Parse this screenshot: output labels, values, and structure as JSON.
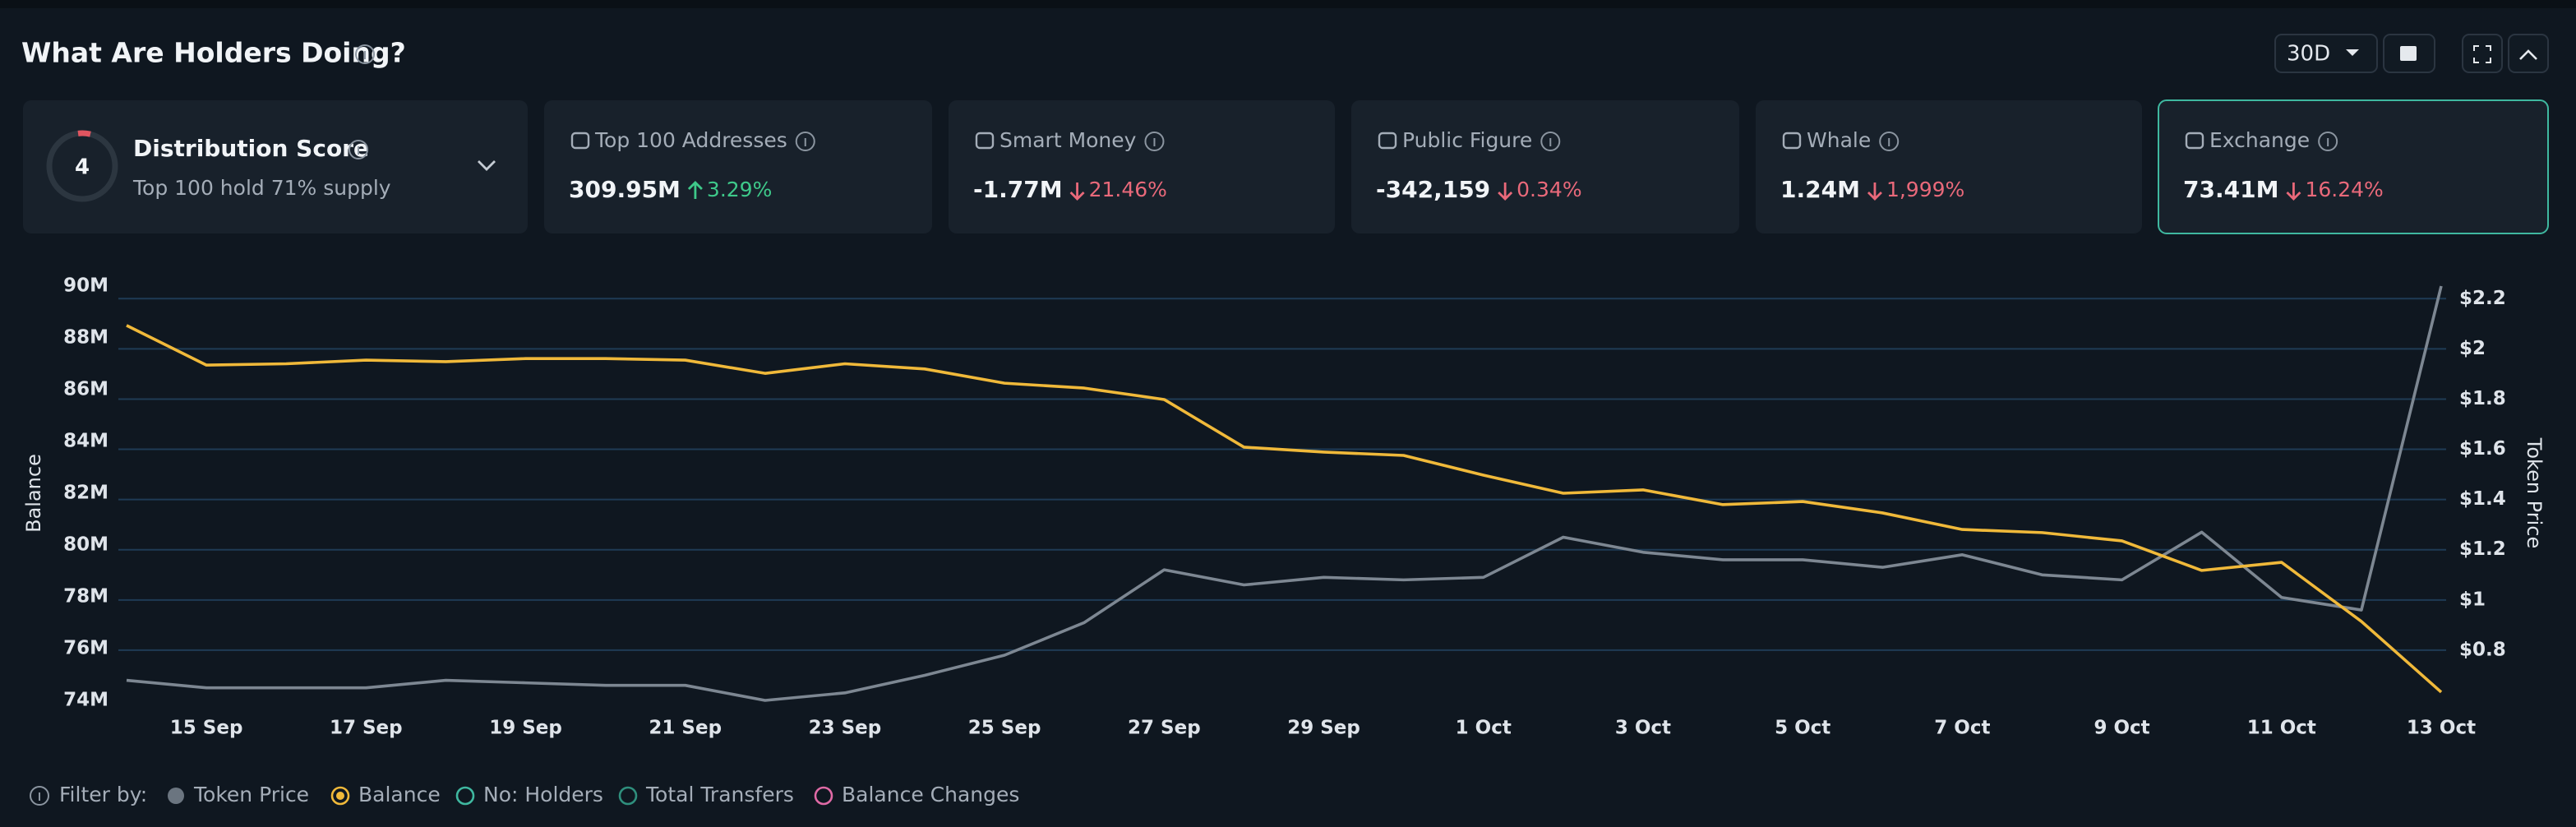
{
  "header": {
    "title": "What Are Holders Doing?",
    "period": "30D"
  },
  "distribution": {
    "label": "Distribution Score",
    "score": 4,
    "subtitle": "Top 100 hold 71% supply"
  },
  "cards": [
    {
      "label": "Top 100 Addresses",
      "value": "309.95M",
      "change": "3.29%",
      "direction": "up"
    },
    {
      "label": "Smart Money",
      "value": "-1.77M",
      "change": "21.46%",
      "direction": "down"
    },
    {
      "label": "Public Figure",
      "value": "-342,159",
      "change": "0.34%",
      "direction": "down"
    },
    {
      "label": "Whale",
      "value": "1.24M",
      "change": "1,999%",
      "direction": "down"
    },
    {
      "label": "Exchange",
      "value": "73.41M",
      "change": "16.24%",
      "direction": "down"
    }
  ],
  "filter": {
    "label": "Filter by:",
    "items": [
      {
        "name": "Token Price",
        "color": "#6b7580",
        "active": true
      },
      {
        "name": "Balance",
        "color": "#f0b93a",
        "active": true
      },
      {
        "name": "No: Holders",
        "color": "#3fb8a0",
        "active": false
      },
      {
        "name": "Total Transfers",
        "color": "#2f8f7d",
        "active": false
      },
      {
        "name": "Balance Changes",
        "color": "#e06aa6",
        "active": false
      }
    ]
  },
  "chart_data": {
    "type": "line",
    "y_label": "Balance",
    "y2_label": "Token Price",
    "categories": [
      null,
      "15 Sep",
      null,
      "17 Sep",
      null,
      "19 Sep",
      null,
      "21 Sep",
      null,
      "23 Sep",
      null,
      "25 Sep",
      null,
      "27 Sep",
      null,
      "29 Sep",
      null,
      "1 Oct",
      null,
      "3 Oct",
      null,
      "5 Oct",
      null,
      "7 Oct",
      null,
      "9 Oct",
      null,
      "11 Oct",
      null,
      "13 Oct"
    ],
    "series": [
      {
        "name": "Balance",
        "color": "#f0b93a",
        "axis": "y",
        "values": [
          88480000,
          86950000,
          87000000,
          87140000,
          87080000,
          87200000,
          87200000,
          87140000,
          86630000,
          87000000,
          86800000,
          86250000,
          86060000,
          85620000,
          83780000,
          83590000,
          83460000,
          82700000,
          82000000,
          82130000,
          81560000,
          81680000,
          81240000,
          80600000,
          80480000,
          80160000,
          79020000,
          79330000,
          77050000,
          74320000
        ]
      },
      {
        "name": "Token Price",
        "color": "#7d8792",
        "axis": "y2",
        "values": [
          0.68,
          0.65,
          0.65,
          0.65,
          0.68,
          0.67,
          0.66,
          0.66,
          0.6,
          0.63,
          0.7,
          0.78,
          0.91,
          1.12,
          1.06,
          1.09,
          1.08,
          1.09,
          1.25,
          1.19,
          1.16,
          1.16,
          1.13,
          1.18,
          1.1,
          1.08,
          1.27,
          1.01,
          0.96,
          2.25
        ]
      }
    ],
    "ylim": [
      74000000,
      90000000
    ],
    "yticks": [
      {
        "value": 74000000,
        "label": "74M"
      },
      {
        "value": 76000000,
        "label": "76M"
      },
      {
        "value": 78000000,
        "label": "78M"
      },
      {
        "value": 80000000,
        "label": "80M"
      },
      {
        "value": 82000000,
        "label": "82M"
      },
      {
        "value": 84000000,
        "label": "84M"
      },
      {
        "value": 86000000,
        "label": "86M"
      },
      {
        "value": 88000000,
        "label": "88M"
      },
      {
        "value": 90000000,
        "label": "90M"
      }
    ],
    "y2lim": [
      0.6,
      2.25
    ],
    "y2ticks": [
      {
        "value": 0.8,
        "label": "$0.8"
      },
      {
        "value": 1,
        "label": "$1"
      },
      {
        "value": 1.2,
        "label": "$1.2"
      },
      {
        "value": 1.4,
        "label": "$1.4"
      },
      {
        "value": 1.6,
        "label": "$1.6"
      },
      {
        "value": 1.8,
        "label": "$1.8"
      },
      {
        "value": 2,
        "label": "$2"
      },
      {
        "value": 2.2,
        "label": "$2.2"
      }
    ],
    "grid": true
  }
}
